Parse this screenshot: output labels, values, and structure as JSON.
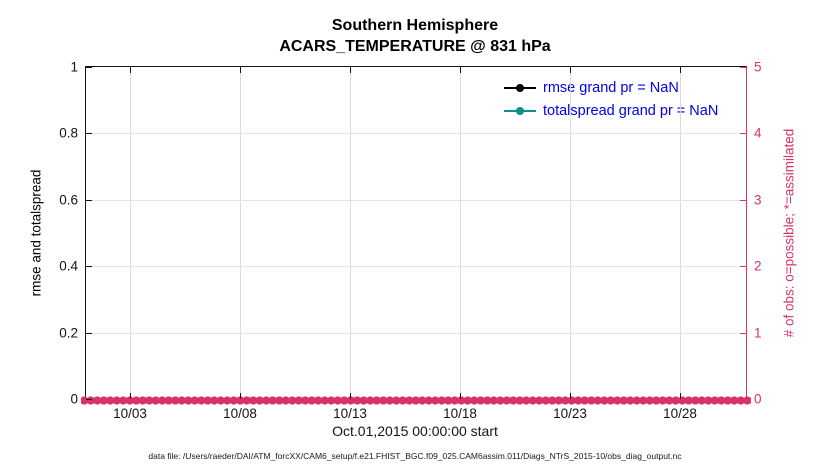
{
  "chart": {
    "title_line1": "Southern Hemisphere",
    "title_line2": "ACARS_TEMPERATURE @ 831 hPa",
    "xlabel": "Oct.01,2015 00:00:00 start",
    "data_file_caption": "data file: /Users/raeder/DAI/ATM_forcXX/CAM6_setup/f.e21.FHIST_BGC.f09_025.CAM6assim.011/Diags_NTrS_2015-10/obs_diag_output.nc",
    "colors": {
      "axis_black": "#141414",
      "right_axis_pink": "#d93366",
      "totalspread_teal": "#0d8f8f",
      "legend_text_blue": "#0000ee",
      "vertical_grid": "#dcdcdc",
      "horizontal_grid": "#f5dce5"
    }
  },
  "chart_data": {
    "type": "line",
    "title": "Southern Hemisphere",
    "subtitle": "ACARS_TEMPERATURE @ 831 hPa",
    "x_axis": {
      "label": "Oct.01,2015 00:00:00 start",
      "range_day_of_month": [
        1,
        31
      ],
      "tick_day_of_month": [
        3,
        8,
        13,
        18,
        23,
        28
      ],
      "tick_labels": [
        "10/03",
        "10/08",
        "10/13",
        "10/18",
        "10/23",
        "10/28"
      ]
    },
    "left_y_axis": {
      "label": "rmse and totalspread",
      "range": [
        0,
        1
      ],
      "tick_values": [
        0,
        0.2,
        0.4,
        0.6,
        0.8,
        1
      ],
      "tick_labels": [
        "0",
        "0.2",
        "0.4",
        "0.6",
        "0.8",
        "1"
      ],
      "color": "#141414"
    },
    "right_y_axis": {
      "label": "# of obs: o=possible; *=assimilated",
      "range": [
        0,
        5
      ],
      "tick_values": [
        0,
        1,
        2,
        3,
        4,
        5
      ],
      "tick_labels": [
        "0",
        "1",
        "2",
        "3",
        "4",
        "5"
      ],
      "color": "#d93366"
    },
    "series": [
      {
        "name": "rmse",
        "legend_label": "rmse grand pr = NaN",
        "axis": "left",
        "color": "#000000",
        "marker": "filled-circle",
        "grand_value": "NaN",
        "values": []
      },
      {
        "name": "totalspread",
        "legend_label": "totalspread grand pr = NaN",
        "axis": "left",
        "color": "#0d8f8f",
        "marker": "filled-circle",
        "grand_value": "NaN",
        "values": []
      },
      {
        "name": "num-obs-possible",
        "axis": "right",
        "color": "#d93366",
        "marker": "circle",
        "constant_value": 0,
        "note": "dense marker band at y=0 across entire x range"
      },
      {
        "name": "num-obs-assimilated",
        "axis": "right",
        "color": "#d93366",
        "marker": "asterisk",
        "constant_value": 0,
        "note": "dense marker band at y=0 across entire x range"
      }
    ],
    "legend": {
      "position": "top-right",
      "text_color": "#0000ee",
      "entries": [
        {
          "label": "rmse grand pr = NaN",
          "line_color": "#000000"
        },
        {
          "label": "totalspread grand pr = NaN",
          "line_color": "#0d8f8f"
        }
      ]
    },
    "grid": {
      "vertical_color": "#dcdcdc",
      "horizontal_color": "#f5dce5"
    }
  }
}
